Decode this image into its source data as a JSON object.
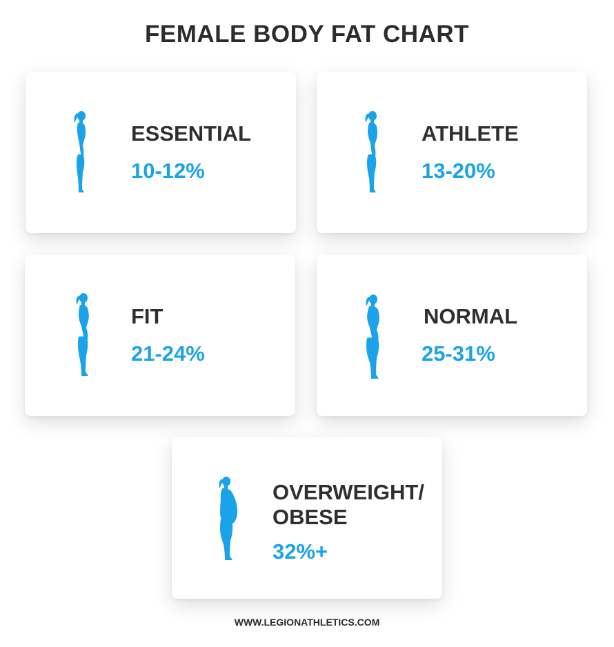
{
  "title": "FEMALE BODY FAT CHART",
  "accent_color": "#1aa3e8",
  "text_color": "#2f2f2f",
  "categories": [
    {
      "label": "ESSENTIAL",
      "range": "10-12%",
      "icon": "female-silhouette-lean-icon"
    },
    {
      "label": "ATHLETE",
      "range": "13-20%",
      "icon": "female-silhouette-athletic-icon"
    },
    {
      "label": "FIT",
      "range": "21-24%",
      "icon": "female-silhouette-fit-icon"
    },
    {
      "label": "NORMAL",
      "range": "25-31%",
      "icon": "female-silhouette-normal-icon"
    },
    {
      "label_line1": "OVERWEIGHT/",
      "label_line2": "OBESE",
      "range": "32%+",
      "icon": "female-silhouette-overweight-icon"
    }
  ],
  "footer": "WWW.LEGIONATHLETICS.COM"
}
